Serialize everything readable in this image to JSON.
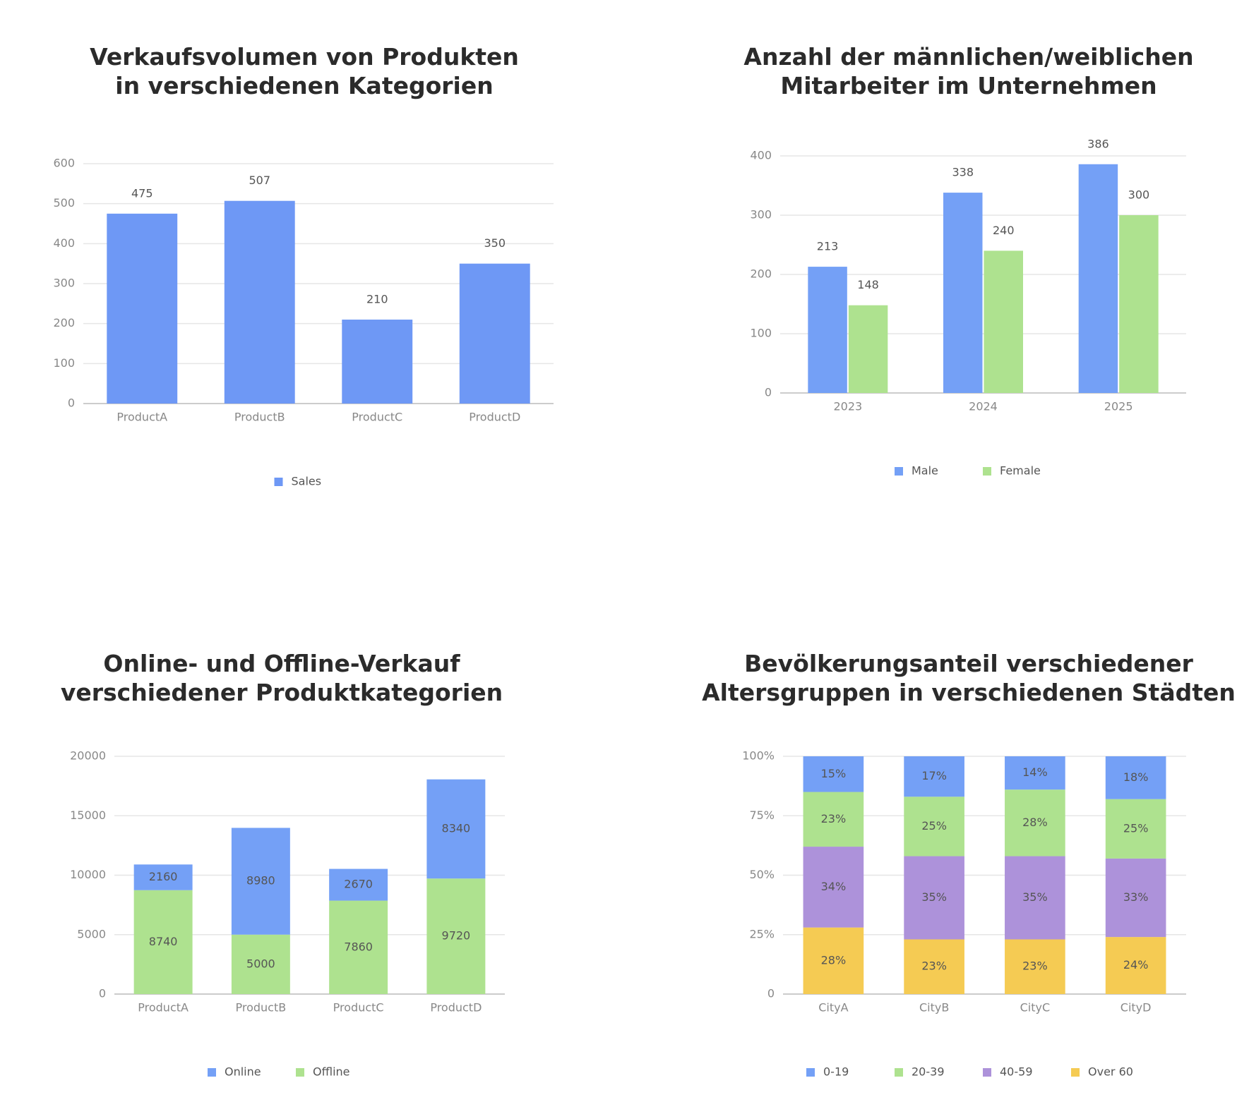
{
  "chart_data": [
    {
      "type": "bar",
      "title": "Verkaufsvolumen von Produkten\nin verschiedenen Kategorien",
      "categories": [
        "ProductA",
        "ProductB",
        "ProductC",
        "ProductD"
      ],
      "series": [
        {
          "name": "Sales",
          "color": "#6e98f5",
          "values": [
            475,
            507,
            210,
            350
          ]
        }
      ],
      "ylim": [
        0,
        600
      ],
      "yticks": [
        0,
        100,
        200,
        300,
        400,
        500,
        600
      ],
      "grid": true,
      "stacked": false,
      "legend": "bottom"
    },
    {
      "type": "bar",
      "title": "Anzahl der männlichen/weiblichen\nMitarbeiter im Unternehmen",
      "categories": [
        "2023",
        "2024",
        "2025"
      ],
      "series": [
        {
          "name": "Male",
          "color": "#74a0f6",
          "values": [
            213,
            338,
            386
          ]
        },
        {
          "name": "Female",
          "color": "#aee28f",
          "values": [
            148,
            240,
            300
          ]
        }
      ],
      "ylim": [
        0,
        400
      ],
      "yticks": [
        0,
        100,
        200,
        300,
        400
      ],
      "grid": true,
      "stacked": false,
      "legend": "bottom"
    },
    {
      "type": "bar",
      "title": "Online- und Offline-Verkauf\nverschiedener Produktkategorien",
      "categories": [
        "ProductA",
        "ProductB",
        "ProductC",
        "ProductD"
      ],
      "series": [
        {
          "name": "Online",
          "color": "#74a0f6",
          "values": [
            2160,
            8980,
            2670,
            8340
          ]
        },
        {
          "name": "Offline",
          "color": "#aee28f",
          "values": [
            8740,
            5000,
            7860,
            9720
          ]
        }
      ],
      "ylim": [
        0,
        20000
      ],
      "yticks": [
        0,
        5000,
        10000,
        15000,
        20000
      ],
      "grid": true,
      "stacked": true,
      "legend": "bottom"
    },
    {
      "type": "bar",
      "title": "Bevölkerungsanteil verschiedener\nAltersgruppen in verschiedenen Städten",
      "categories": [
        "CityA",
        "CityB",
        "CityC",
        "CityD"
      ],
      "series": [
        {
          "name": "0-19",
          "color": "#74a0f6",
          "values": [
            15,
            17,
            14,
            18
          ],
          "value_labels": [
            "15%",
            "17%",
            "14%",
            "18%"
          ]
        },
        {
          "name": "20-39",
          "color": "#aee28f",
          "values": [
            23,
            25,
            28,
            25
          ],
          "value_labels": [
            "23%",
            "25%",
            "28%",
            "25%"
          ]
        },
        {
          "name": "40-59",
          "color": "#ad92da",
          "values": [
            34,
            35,
            35,
            33
          ],
          "value_labels": [
            "34%",
            "35%",
            "35%",
            "33%"
          ]
        },
        {
          "name": "Over 60",
          "color": "#f5cb53",
          "values": [
            28,
            23,
            23,
            24
          ],
          "value_labels": [
            "28%",
            "23%",
            "23%",
            "24%"
          ]
        }
      ],
      "ylim": [
        0,
        100
      ],
      "yticks": [
        0,
        {
          "value": 25,
          "label": "25%"
        },
        {
          "value": 50,
          "label": "50%"
        },
        {
          "value": 75,
          "label": "75%"
        },
        {
          "value": 100,
          "label": "100%"
        }
      ],
      "grid": true,
      "stacked": true,
      "legend": "bottom"
    }
  ]
}
